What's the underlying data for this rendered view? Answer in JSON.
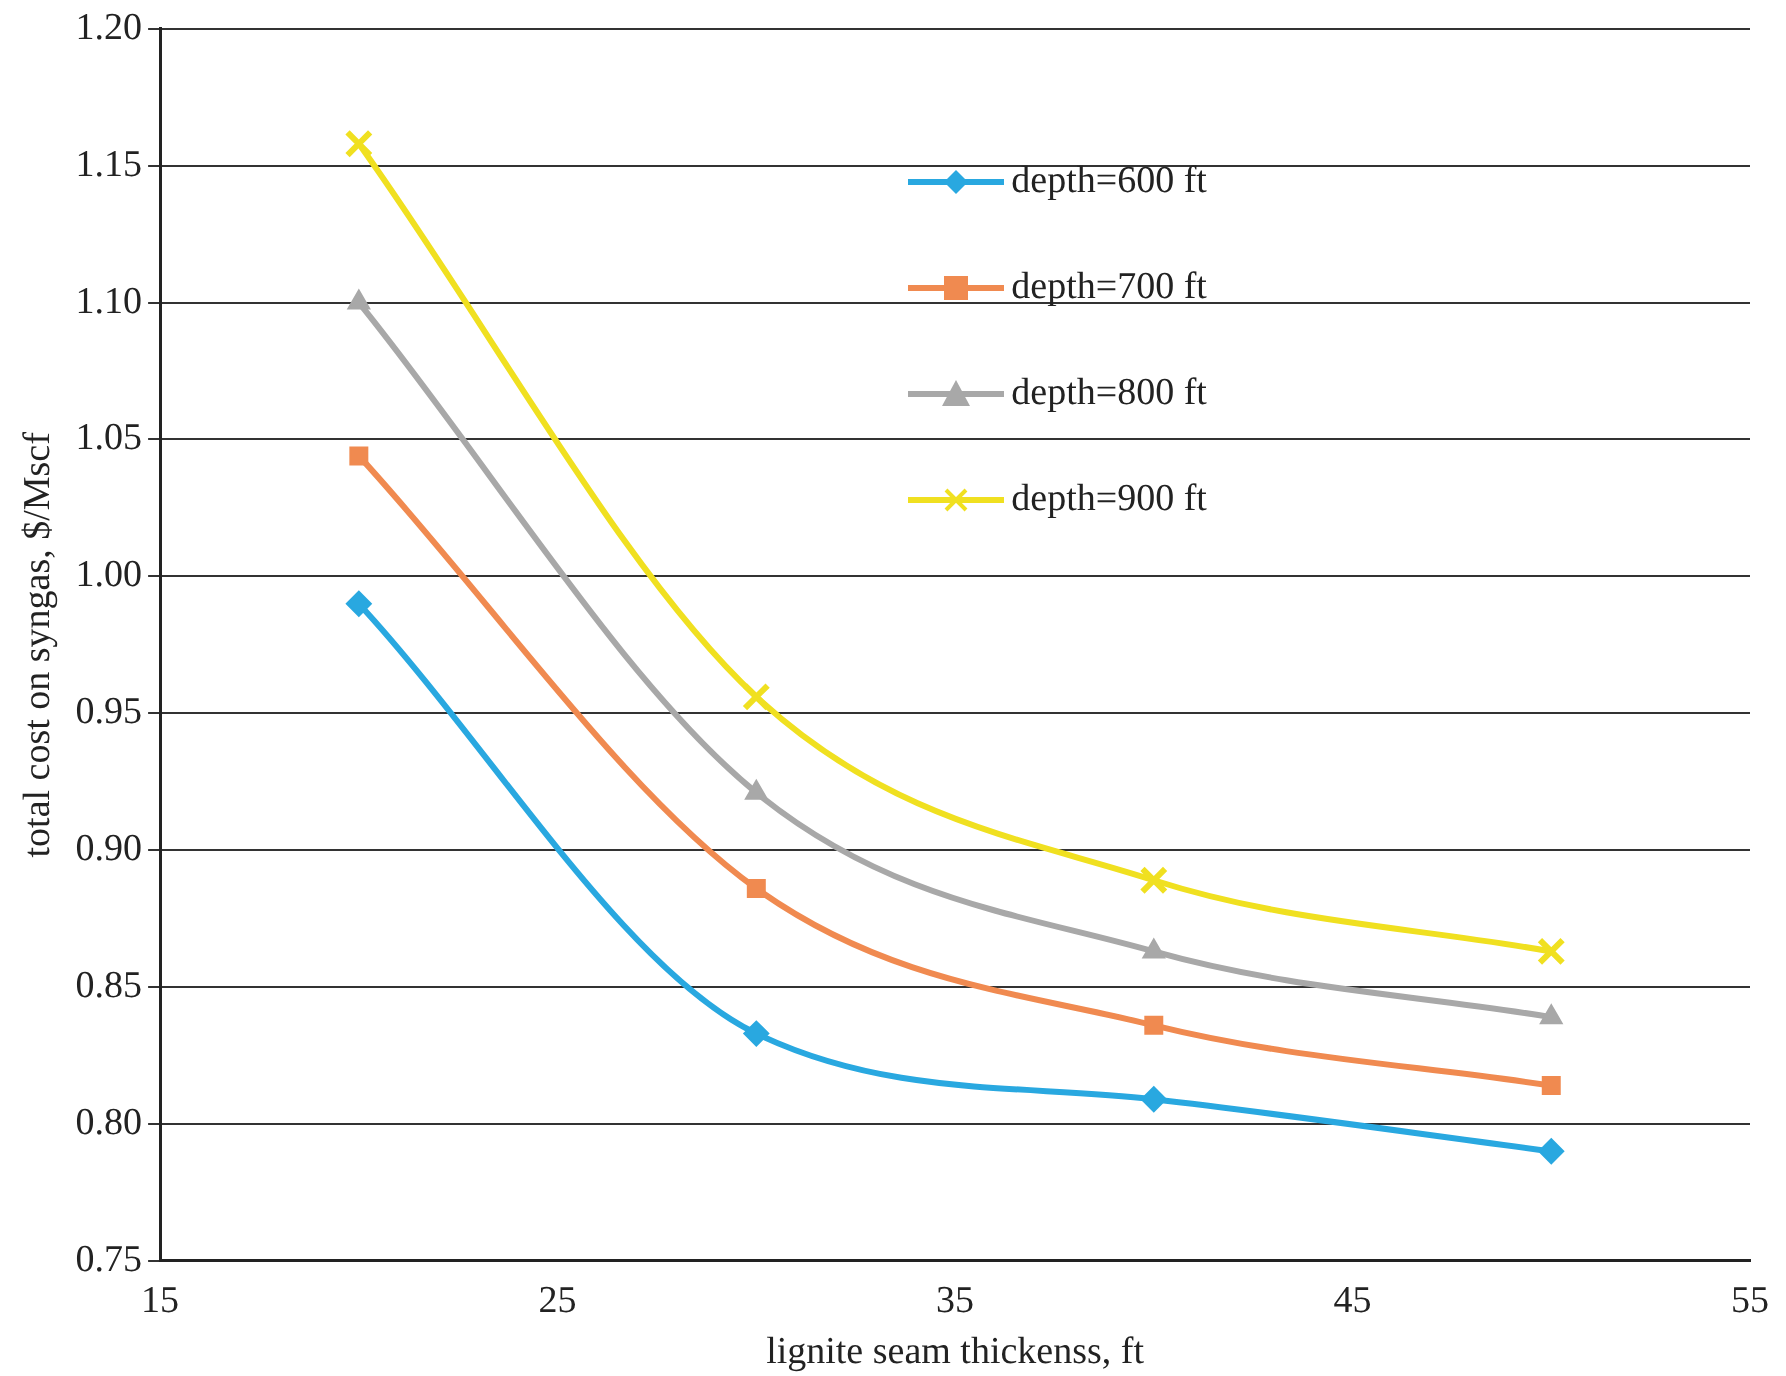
{
  "chart_data": {
    "type": "line",
    "xlabel": "lignite seam thickenss, ft",
    "ylabel": "total cost on syngas, $/Mscf",
    "x": [
      20,
      30,
      40,
      50
    ],
    "series": [
      {
        "name": "depth=600 ft",
        "color": "#29a8e0",
        "marker": "diamond",
        "values": [
          0.99,
          0.833,
          0.809,
          0.79
        ]
      },
      {
        "name": "depth=700 ft",
        "color": "#f08a50",
        "marker": "square",
        "values": [
          1.044,
          0.886,
          0.836,
          0.814
        ]
      },
      {
        "name": "depth=800 ft",
        "color": "#a8a8a8",
        "marker": "triangle",
        "values": [
          1.1,
          0.921,
          0.863,
          0.839
        ]
      },
      {
        "name": "depth=900 ft",
        "color": "#f0e020",
        "marker": "cross",
        "values": [
          1.158,
          0.956,
          0.889,
          0.863
        ]
      }
    ],
    "xlim": [
      15,
      55
    ],
    "xticks": [
      15,
      25,
      35,
      45,
      55
    ],
    "ylim": [
      0.75,
      1.2
    ],
    "yticks": [
      {
        "value": 0.75,
        "label": "0.75"
      },
      {
        "value": 0.8,
        "label": "0.80"
      },
      {
        "value": 0.85,
        "label": "0.85"
      },
      {
        "value": 0.9,
        "label": "0.90"
      },
      {
        "value": 0.95,
        "label": "0.95"
      },
      {
        "value": 1.0,
        "label": "1.00"
      },
      {
        "value": 1.05,
        "label": "1.05"
      },
      {
        "value": 1.1,
        "label": "1.10"
      },
      {
        "value": 1.15,
        "label": "1.15"
      },
      {
        "value": 1.2,
        "label": "1.20"
      }
    ],
    "grid": "y",
    "legend": "top right"
  }
}
